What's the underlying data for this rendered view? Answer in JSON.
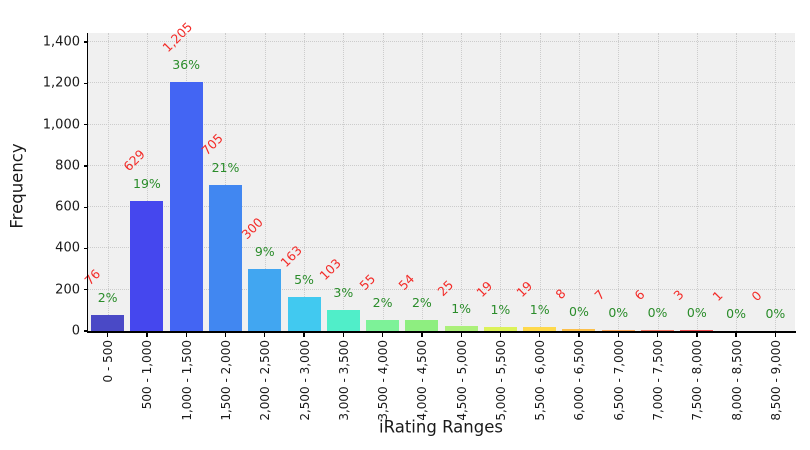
{
  "chart_data": {
    "type": "bar",
    "title": "",
    "xlabel": "iRating Ranges",
    "ylabel": "Frequency",
    "ylim": [
      0,
      1400
    ],
    "grid": true,
    "legend_position": "none",
    "yticks": [
      0,
      200,
      400,
      600,
      800,
      1000,
      1200,
      1400
    ],
    "ytick_labels": [
      "0",
      "200",
      "400",
      "600",
      "800",
      "1,000",
      "1,200",
      "1,400"
    ],
    "categories": [
      "0 - 500",
      "500 - 1,000",
      "1,000 - 1,500",
      "1,500 - 2,000",
      "2,000 - 2,500",
      "2,500 - 3,000",
      "3,000 - 3,500",
      "3,500 - 4,000",
      "4,000 - 4,500",
      "4,500 - 5,000",
      "5,000 - 5,500",
      "5,500 - 6,000",
      "6,000 - 6,500",
      "6,500 - 7,000",
      "7,000 - 7,500",
      "7,500 - 8,000",
      "8,000 - 8,500",
      "8,500 - 9,000"
    ],
    "values": [
      76,
      629,
      1205,
      705,
      300,
      163,
      103,
      55,
      54,
      25,
      19,
      19,
      8,
      7,
      6,
      3,
      1,
      0
    ],
    "value_labels": [
      "76",
      "629",
      "1,205",
      "705",
      "300",
      "163",
      "103",
      "55",
      "54",
      "25",
      "19",
      "19",
      "8",
      "7",
      "6",
      "3",
      "1",
      "0"
    ],
    "pct_labels": [
      "2%",
      "19%",
      "36%",
      "21%",
      "9%",
      "5%",
      "3%",
      "2%",
      "2%",
      "1%",
      "1%",
      "1%",
      "0%",
      "0%",
      "0%",
      "0%",
      "0%",
      "0%"
    ],
    "bar_colors": [
      "#4a49c6",
      "#4547ee",
      "#4365f3",
      "#4187f1",
      "#41a6f1",
      "#41c9f0",
      "#50eec9",
      "#7df298",
      "#8eee80",
      "#abf07a",
      "#dcf259",
      "#fed94c",
      "#fcc04b",
      "#fba455",
      "#f4725e",
      "#ee4c4e",
      "#ee393b",
      "#ee2a28"
    ],
    "value_label_color": "#f32b28",
    "pct_label_color": "#2a8c2a",
    "plot_bg": "#f0f0f0",
    "grid_color": "#cccccc",
    "axis_color": "#000000"
  }
}
